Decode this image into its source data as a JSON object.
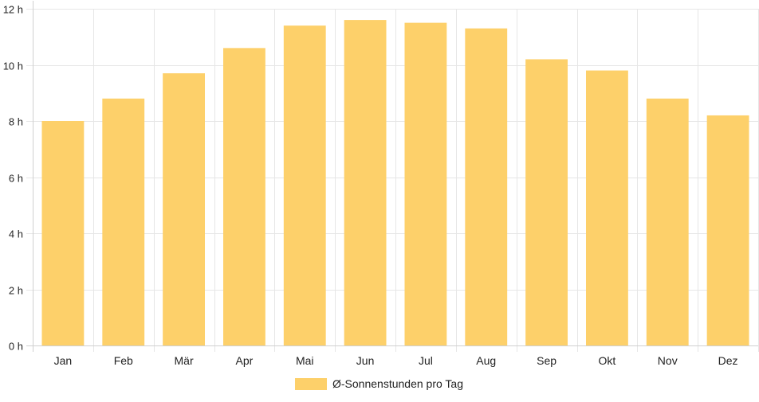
{
  "chart_data": {
    "type": "bar",
    "categories": [
      "Jan",
      "Feb",
      "Mär",
      "Apr",
      "Mai",
      "Jun",
      "Jul",
      "Aug",
      "Sep",
      "Okt",
      "Nov",
      "Dez"
    ],
    "series": [
      {
        "name": "Ø-Sonnenstunden pro Tag",
        "values": [
          8.0,
          8.8,
          9.7,
          10.6,
          11.4,
          11.6,
          11.5,
          11.3,
          10.2,
          9.8,
          8.8,
          8.2
        ],
        "color": "#fdd06a"
      }
    ],
    "ylim": [
      0,
      12
    ],
    "y_ticks": [
      {
        "value": 0,
        "label": "0 h"
      },
      {
        "value": 2,
        "label": "2 h"
      },
      {
        "value": 4,
        "label": "4 h"
      },
      {
        "value": 6,
        "label": "6 h"
      },
      {
        "value": 8,
        "label": "8 h"
      },
      {
        "value": 10,
        "label": "10 h"
      },
      {
        "value": 12,
        "label": "12 h"
      }
    ],
    "grid": true,
    "legend_position": "bottom",
    "gridline_color": "#e6e6e6"
  }
}
